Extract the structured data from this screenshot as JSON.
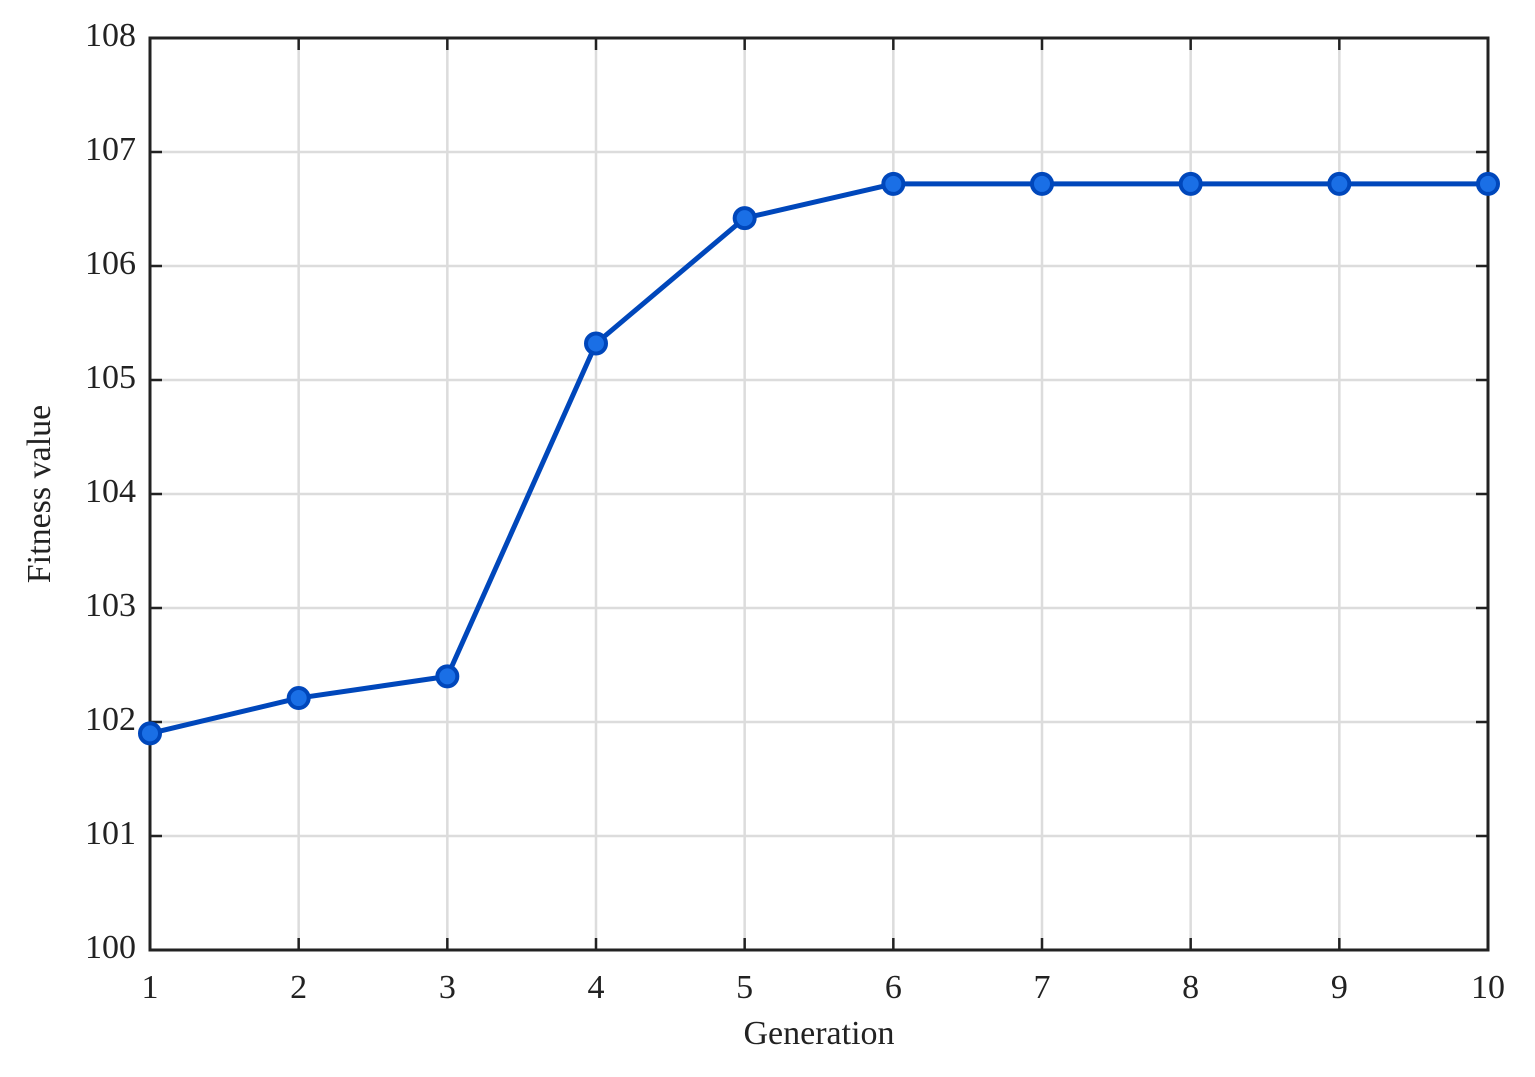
{
  "chart_data": {
    "type": "line",
    "x_label": "Generation",
    "y_label": "Fitness value",
    "x": [
      1,
      2,
      3,
      4,
      5,
      6,
      7,
      8,
      9,
      10
    ],
    "series": [
      {
        "name": "Fitness",
        "color": "#0047bb",
        "marker_color": "#1a6fe6",
        "values": [
          101.9,
          102.21,
          102.4,
          105.32,
          106.42,
          106.72,
          106.72,
          106.72,
          106.72,
          106.72
        ]
      }
    ],
    "xlim": [
      1,
      10
    ],
    "xticks": [
      1,
      2,
      3,
      4,
      5,
      6,
      7,
      8,
      9,
      10
    ],
    "ylim": [
      100,
      108
    ],
    "yticks": [
      100,
      101,
      102,
      103,
      104,
      105,
      106,
      107,
      108
    ],
    "grid": true
  }
}
